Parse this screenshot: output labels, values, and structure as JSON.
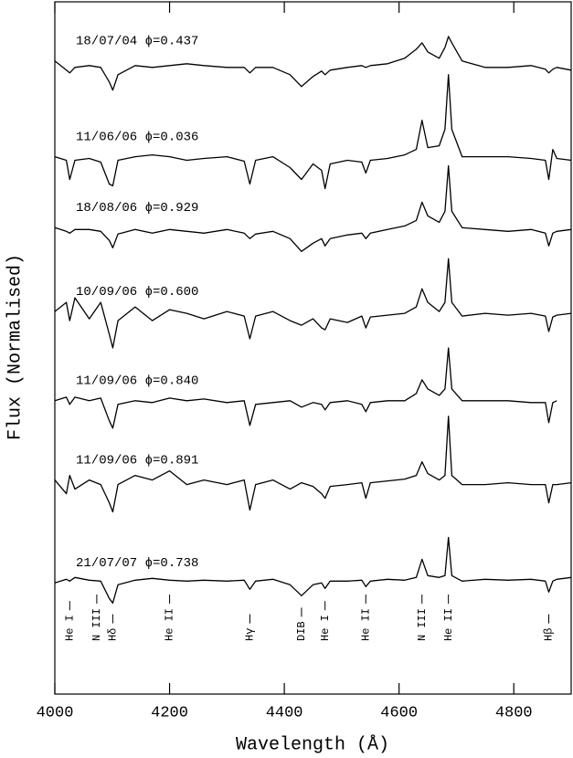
{
  "chart_data": {
    "type": "line",
    "xlabel": "Wavelength (Å)",
    "ylabel": "Flux (Normalised)",
    "xlim": [
      4000,
      4900
    ],
    "ylim": [
      0,
      7.6
    ],
    "xticks": [
      4000,
      4200,
      4400,
      4600,
      4800
    ],
    "x": [
      4000,
      4020,
      4026,
      4035,
      4060,
      4080,
      4095,
      4101,
      4110,
      4140,
      4170,
      4200,
      4230,
      4260,
      4300,
      4330,
      4340,
      4350,
      4380,
      4410,
      4430,
      4450,
      4465,
      4471,
      4480,
      4510,
      4535,
      4542,
      4550,
      4580,
      4610,
      4630,
      4640,
      4650,
      4670,
      4680,
      4686,
      4692,
      4710,
      4750,
      4790,
      4830,
      4855,
      4861,
      4868,
      4875,
      4900
    ],
    "series": [
      {
        "name": "18/07/04 ϕ=0.437",
        "color": "#000000",
        "values": [
          6.95,
          6.85,
          6.82,
          6.88,
          6.9,
          6.88,
          6.72,
          6.63,
          6.8,
          6.9,
          6.88,
          6.9,
          6.92,
          6.9,
          6.88,
          6.88,
          6.82,
          6.88,
          6.88,
          6.8,
          6.67,
          6.78,
          6.84,
          6.8,
          6.85,
          6.88,
          6.9,
          6.88,
          6.9,
          6.92,
          6.98,
          7.08,
          7.15,
          7.05,
          6.98,
          7.1,
          7.22,
          7.15,
          6.95,
          6.88,
          6.88,
          6.9,
          6.86,
          6.82,
          6.86,
          6.88,
          6.85
        ]
      },
      {
        "name": "11/06/06 ϕ=0.036",
        "color": "#000000",
        "values": [
          5.9,
          5.86,
          5.65,
          5.86,
          5.88,
          5.84,
          5.6,
          5.58,
          5.86,
          5.9,
          5.92,
          5.9,
          5.86,
          5.88,
          5.9,
          5.85,
          5.6,
          5.86,
          5.9,
          5.78,
          5.65,
          5.82,
          5.75,
          5.55,
          5.82,
          5.86,
          5.84,
          5.72,
          5.86,
          5.88,
          5.92,
          5.98,
          6.3,
          6.0,
          6.02,
          6.2,
          6.8,
          6.2,
          5.9,
          5.9,
          5.9,
          5.88,
          5.86,
          5.65,
          5.98,
          5.88,
          5.86
        ]
      },
      {
        "name": "18/08/06 ϕ=0.929",
        "color": "#000000",
        "values": [
          5.12,
          5.08,
          5.06,
          5.1,
          5.1,
          5.08,
          4.98,
          4.9,
          5.05,
          5.1,
          5.06,
          5.1,
          5.08,
          5.06,
          5.1,
          5.06,
          5.0,
          5.05,
          5.08,
          5.0,
          4.86,
          4.95,
          5.0,
          4.92,
          5.0,
          5.04,
          5.06,
          5.0,
          5.06,
          5.1,
          5.14,
          5.2,
          5.4,
          5.25,
          5.18,
          5.3,
          5.8,
          5.3,
          5.12,
          5.1,
          5.08,
          5.1,
          5.06,
          4.92,
          5.06,
          5.08,
          5.1
        ]
      },
      {
        "name": "10/09/06 ϕ=0.600",
        "color": "#000000",
        "values": [
          4.2,
          4.3,
          4.1,
          4.35,
          4.12,
          4.3,
          3.95,
          3.8,
          4.1,
          4.25,
          4.1,
          4.22,
          4.18,
          4.12,
          4.2,
          4.15,
          3.9,
          4.15,
          4.2,
          4.1,
          4.05,
          4.12,
          4.02,
          4.0,
          4.12,
          4.08,
          4.15,
          4.02,
          4.14,
          4.16,
          4.18,
          4.25,
          4.45,
          4.3,
          4.2,
          4.3,
          4.78,
          4.3,
          4.15,
          4.18,
          4.16,
          4.18,
          4.15,
          3.98,
          4.14,
          4.16,
          4.18
        ]
      },
      {
        "name": "11/09/06 ϕ=0.840",
        "color": "#000000",
        "values": [
          3.22,
          3.26,
          3.18,
          3.26,
          3.22,
          3.25,
          3.0,
          2.92,
          3.18,
          3.22,
          3.2,
          3.25,
          3.22,
          3.24,
          3.2,
          3.22,
          2.95,
          3.18,
          3.2,
          3.22,
          3.15,
          3.2,
          3.18,
          3.12,
          3.2,
          3.22,
          3.18,
          3.1,
          3.2,
          3.22,
          3.22,
          3.3,
          3.45,
          3.35,
          3.28,
          3.35,
          3.8,
          3.35,
          3.22,
          3.22,
          3.22,
          3.2,
          3.2,
          2.98,
          3.2,
          3.22,
          null
        ]
      },
      {
        "name": "11/09/06 ϕ=0.891",
        "color": "#000000",
        "values": [
          2.35,
          2.2,
          2.4,
          2.25,
          2.35,
          2.3,
          2.1,
          2.0,
          2.3,
          2.4,
          2.35,
          2.45,
          2.3,
          2.35,
          2.3,
          2.35,
          2.02,
          2.3,
          2.35,
          2.25,
          2.32,
          2.28,
          2.2,
          2.15,
          2.28,
          2.3,
          2.32,
          2.15,
          2.32,
          2.34,
          2.36,
          2.4,
          2.55,
          2.42,
          2.35,
          2.4,
          3.05,
          2.4,
          2.3,
          2.3,
          2.32,
          2.3,
          2.3,
          2.1,
          2.3,
          2.3,
          2.32
        ]
      },
      {
        "name": "21/07/07 ϕ=0.738",
        "color": "#000000",
        "values": [
          1.22,
          1.26,
          1.24,
          1.28,
          1.25,
          1.24,
          1.05,
          1.0,
          1.2,
          1.25,
          1.27,
          1.25,
          1.24,
          1.25,
          1.24,
          1.25,
          1.15,
          1.24,
          1.26,
          1.2,
          1.08,
          1.2,
          1.22,
          1.16,
          1.24,
          1.24,
          1.25,
          1.18,
          1.24,
          1.26,
          1.25,
          1.28,
          1.48,
          1.3,
          1.28,
          1.3,
          1.72,
          1.3,
          1.24,
          1.26,
          1.25,
          1.26,
          1.24,
          1.12,
          1.24,
          1.26,
          1.28
        ]
      }
    ],
    "annotations": [
      {
        "text": "He I",
        "x": 4026
      },
      {
        "text": "N III",
        "x": 4097
      },
      {
        "text": "Hδ",
        "x": 4101
      },
      {
        "text": "He II",
        "x": 4200
      },
      {
        "text": "Hγ",
        "x": 4340
      },
      {
        "text": "DIB",
        "x": 4430
      },
      {
        "text": "He I",
        "x": 4471
      },
      {
        "text": "He II",
        "x": 4542
      },
      {
        "text": "N III",
        "x": 4640
      },
      {
        "text": "He II",
        "x": 4686
      },
      {
        "text": "Hβ",
        "x": 4861
      }
    ]
  }
}
